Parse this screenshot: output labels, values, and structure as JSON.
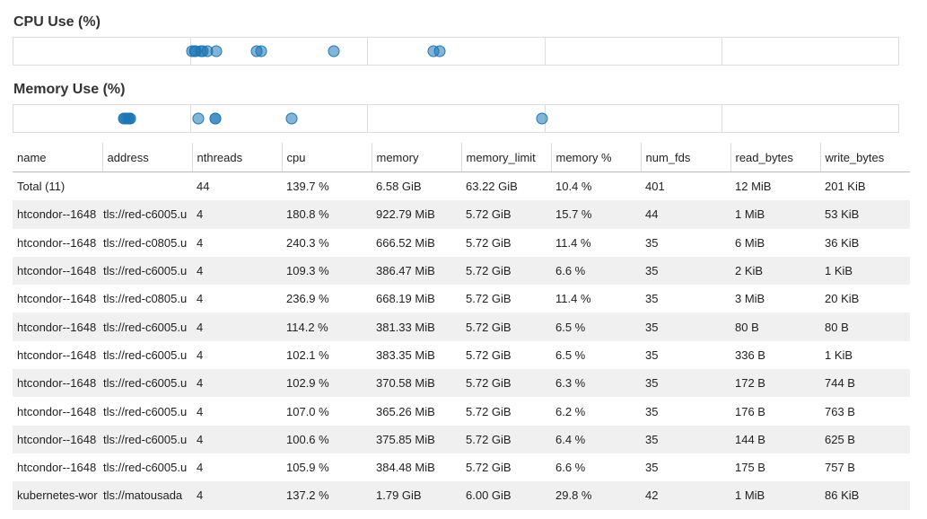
{
  "cpu": {
    "title": "CPU Use (%)",
    "axis_max": 500,
    "values": [
      139.7,
      180.8,
      240.3,
      109.3,
      236.9,
      114.2,
      102.1,
      102.9,
      107.0,
      100.6,
      105.9,
      137.2
    ]
  },
  "memory": {
    "title": "Memory Use (%)",
    "axis_max": 50,
    "values": [
      10.4,
      15.7,
      11.4,
      6.6,
      11.4,
      6.5,
      6.5,
      6.3,
      6.2,
      6.4,
      6.6,
      29.8
    ]
  },
  "colors": {
    "dot": "#1f77b4",
    "grid": "#dddddd",
    "stripe": "#f0f0f0"
  },
  "table": {
    "columns": [
      "name",
      "address",
      "nthreads",
      "cpu",
      "memory",
      "memory_limit",
      "memory %",
      "num_fds",
      "read_bytes",
      "write_bytes"
    ],
    "rows": [
      [
        "Total (11)",
        "",
        "44",
        "139.7 %",
        "6.58 GiB",
        "63.22 GiB",
        "10.4 %",
        "401",
        "12 MiB",
        "201 KiB"
      ],
      [
        "htcondor--1648",
        "tls://red-c6005.u",
        "4",
        "180.8 %",
        "922.79 MiB",
        "5.72 GiB",
        "15.7 %",
        "44",
        "1 MiB",
        "53 KiB"
      ],
      [
        "htcondor--1648",
        "tls://red-c0805.u",
        "4",
        "240.3 %",
        "666.52 MiB",
        "5.72 GiB",
        "11.4 %",
        "35",
        "6 MiB",
        "36 KiB"
      ],
      [
        "htcondor--1648",
        "tls://red-c6005.u",
        "4",
        "109.3 %",
        "386.47 MiB",
        "5.72 GiB",
        "6.6 %",
        "35",
        "2 KiB",
        "1 KiB"
      ],
      [
        "htcondor--1648",
        "tls://red-c0805.u",
        "4",
        "236.9 %",
        "668.19 MiB",
        "5.72 GiB",
        "11.4 %",
        "35",
        "3 MiB",
        "20 KiB"
      ],
      [
        "htcondor--1648",
        "tls://red-c6005.u",
        "4",
        "114.2 %",
        "381.33 MiB",
        "5.72 GiB",
        "6.5 %",
        "35",
        "80 B",
        "80 B"
      ],
      [
        "htcondor--1648",
        "tls://red-c6005.u",
        "4",
        "102.1 %",
        "383.35 MiB",
        "5.72 GiB",
        "6.5 %",
        "35",
        "336 B",
        "1 KiB"
      ],
      [
        "htcondor--1648",
        "tls://red-c6005.u",
        "4",
        "102.9 %",
        "370.58 MiB",
        "5.72 GiB",
        "6.3 %",
        "35",
        "172 B",
        "744 B"
      ],
      [
        "htcondor--1648",
        "tls://red-c6005.u",
        "4",
        "107.0 %",
        "365.26 MiB",
        "5.72 GiB",
        "6.2 %",
        "35",
        "176 B",
        "763 B"
      ],
      [
        "htcondor--1648",
        "tls://red-c6005.u",
        "4",
        "100.6 %",
        "375.85 MiB",
        "5.72 GiB",
        "6.4 %",
        "35",
        "144 B",
        "625 B"
      ],
      [
        "htcondor--1648",
        "tls://red-c6005.u",
        "4",
        "105.9 %",
        "384.48 MiB",
        "5.72 GiB",
        "6.6 %",
        "35",
        "175 B",
        "757 B"
      ],
      [
        "kubernetes-wor",
        "tls://matousada",
        "4",
        "137.2 %",
        "1.79 GiB",
        "6.00 GiB",
        "29.8 %",
        "42",
        "1 MiB",
        "86 KiB"
      ]
    ]
  }
}
